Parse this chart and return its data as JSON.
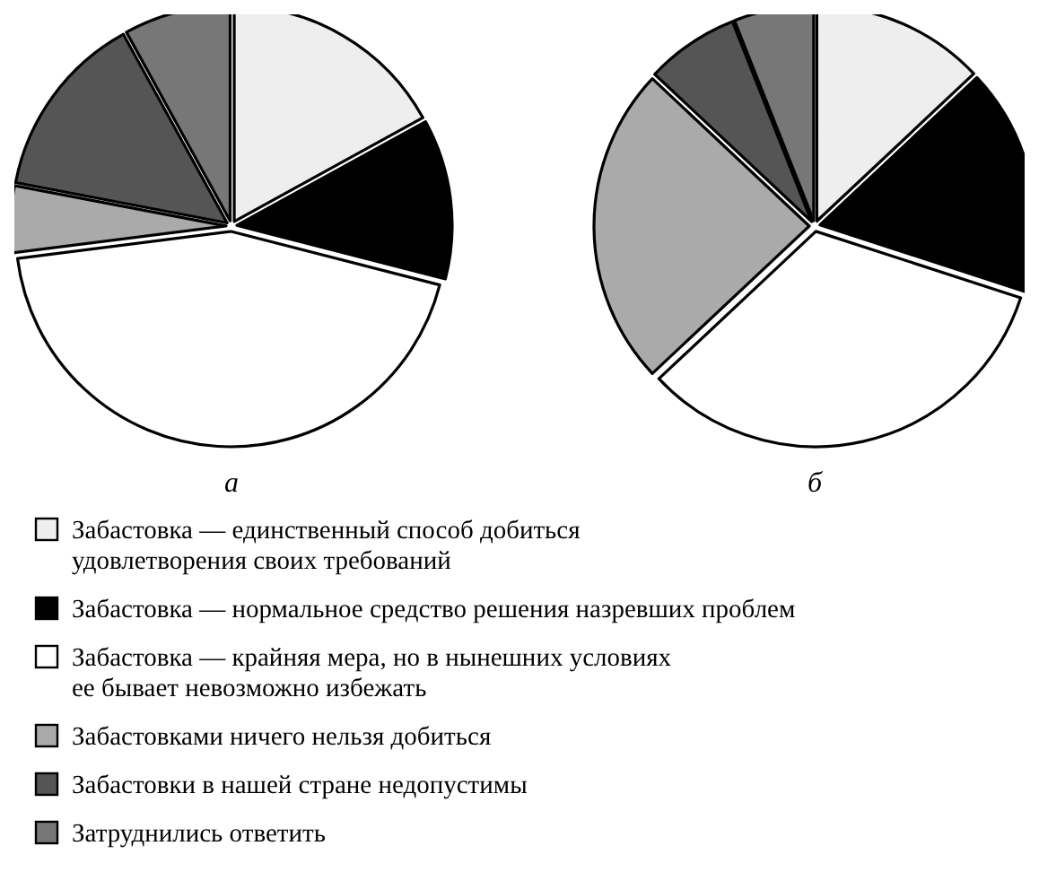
{
  "chart_data": [
    {
      "type": "pie",
      "title": "а",
      "categories": [
        "Забастовка — единственный способ добиться\nудовлетворения своих требований",
        "Забастовка — нормальное средство решения назревших проблем",
        "Забастовка — крайняя мера, но в нынешних условиях\nее бывает невозможно избежать",
        "Забастовками ничего нельзя добиться",
        "Забастовки в нашей стране недопустимы",
        "Затруднились ответить"
      ],
      "values": [
        17,
        12,
        44,
        5,
        14,
        8
      ],
      "colors": [
        "#eeeeee",
        "#000000",
        "#ffffff",
        "#aaaaaa",
        "#555555",
        "#777777"
      ],
      "legend": "bottom"
    },
    {
      "type": "pie",
      "title": "б",
      "categories": [
        null,
        null,
        null,
        null,
        null,
        null
      ],
      "values": [
        13,
        17,
        33,
        24,
        7,
        6
      ],
      "colors": [
        "#eeeeee",
        "#000000",
        "#ffffff",
        "#aaaaaa",
        "#555555",
        "#777777"
      ]
    }
  ]
}
